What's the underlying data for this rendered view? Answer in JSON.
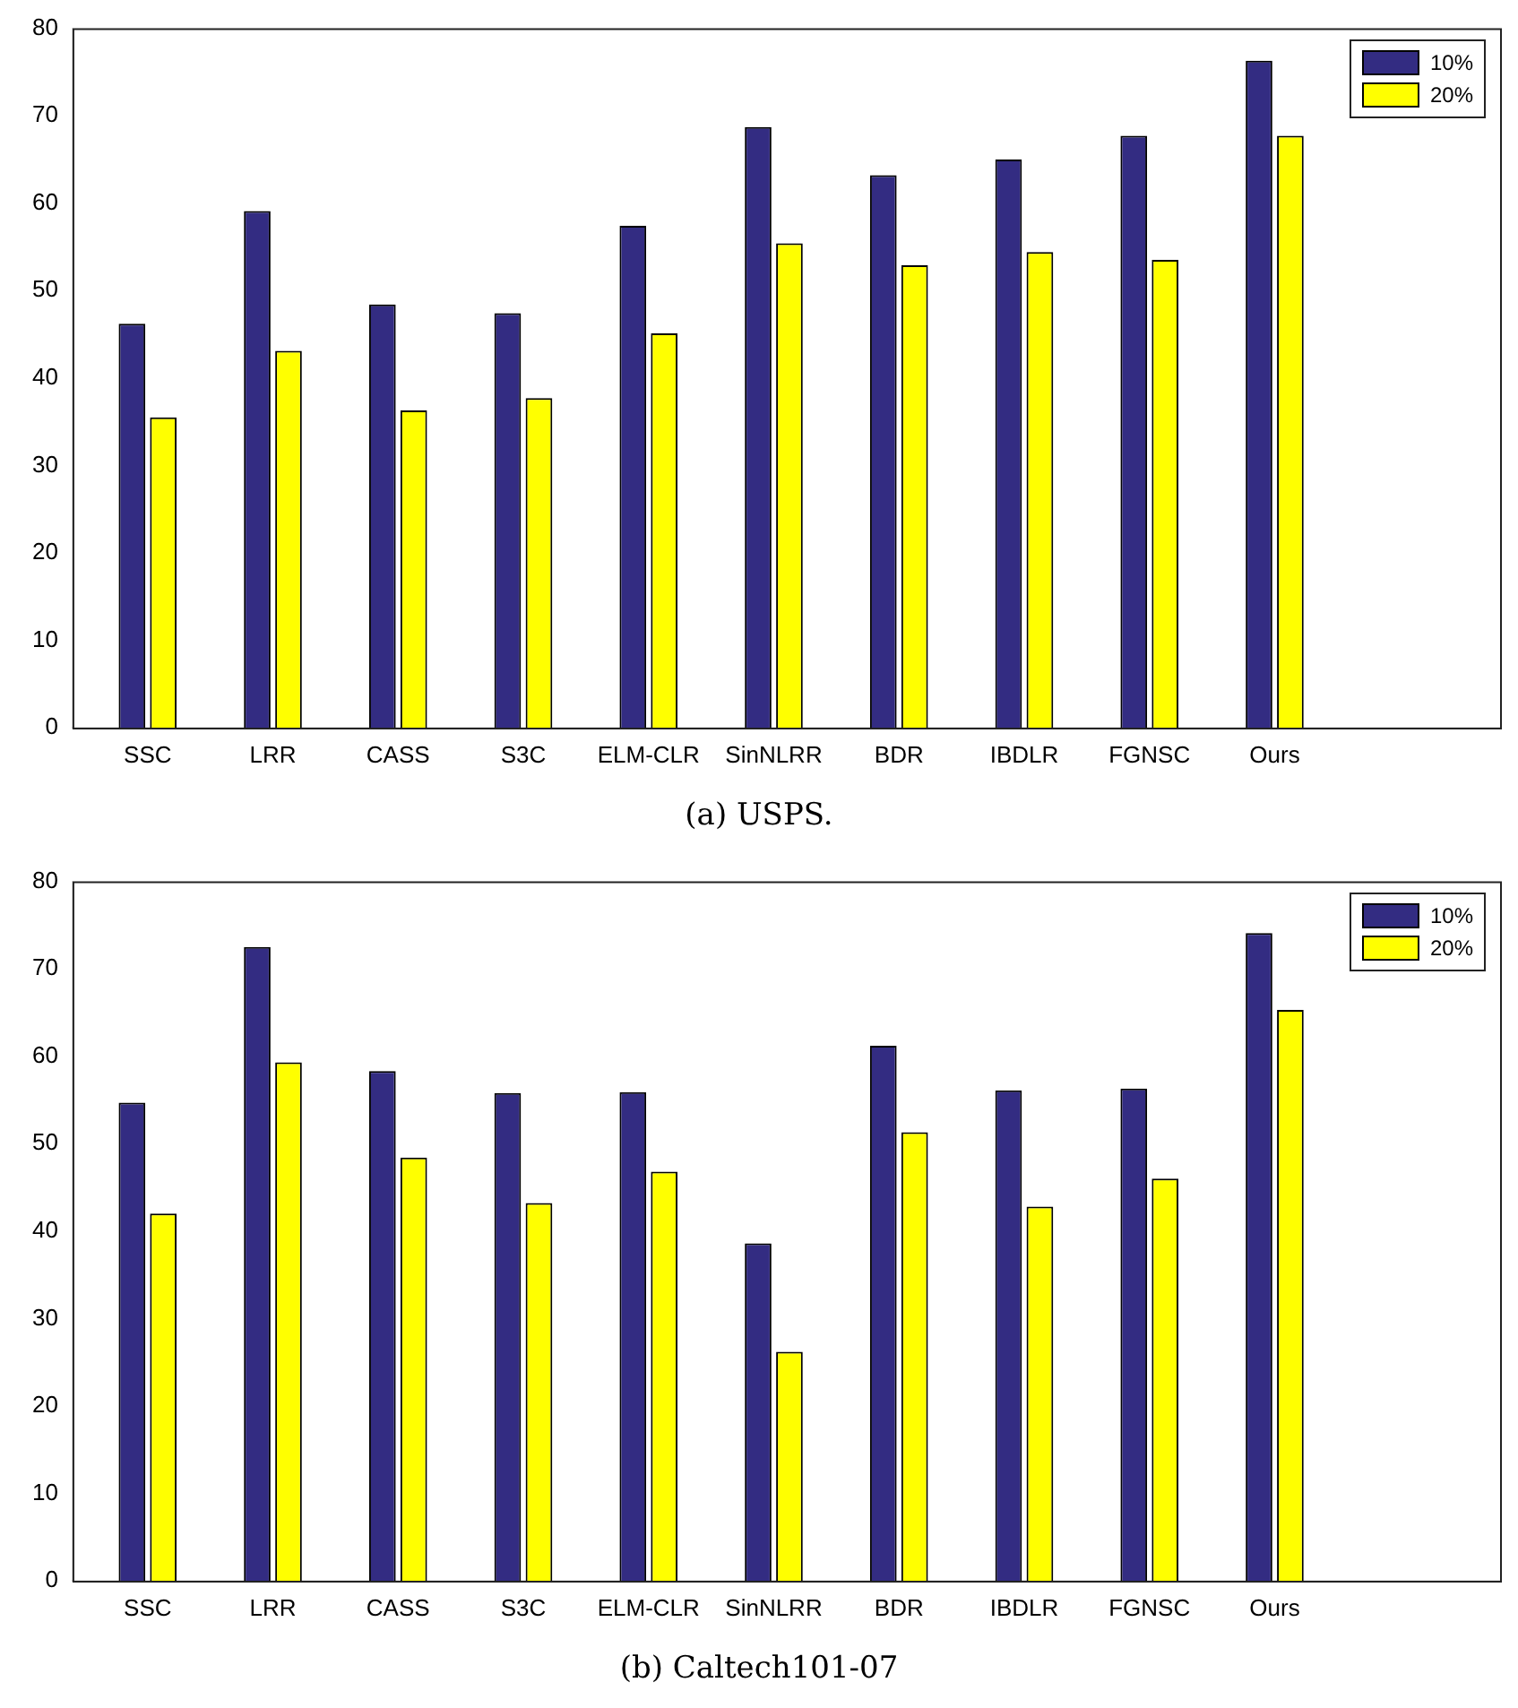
{
  "chart_data": [
    {
      "type": "bar",
      "title": "(a) USPS.",
      "categories": [
        "SSC",
        "LRR",
        "CASS",
        "S3C",
        "ELM-CLR",
        "SinNLRR",
        "BDR",
        "IBDLR",
        "FGNSC",
        "Ours"
      ],
      "series": [
        {
          "name": "10%",
          "color": "#332c82",
          "values": [
            46.2,
            59.1,
            48.4,
            47.4,
            57.4,
            68.7,
            63.2,
            65.0,
            67.7,
            76.3
          ]
        },
        {
          "name": "20%",
          "color": "#ffff00",
          "values": [
            35.5,
            43.1,
            36.3,
            37.7,
            45.1,
            55.4,
            52.9,
            54.4,
            53.5,
            67.7
          ]
        }
      ],
      "ylim": [
        0,
        80
      ],
      "yticks": [
        0,
        10,
        20,
        30,
        40,
        50,
        60,
        70,
        80
      ],
      "grid": false,
      "legend": "top right"
    },
    {
      "type": "bar",
      "title": "(b) Caltech101-07",
      "categories": [
        "SSC",
        "LRR",
        "CASS",
        "S3C",
        "ELM-CLR",
        "SinNLRR",
        "BDR",
        "IBDLR",
        "FGNSC",
        "Ours"
      ],
      "series": [
        {
          "name": "10%",
          "color": "#332c82",
          "values": [
            54.7,
            72.5,
            58.3,
            55.8,
            55.9,
            38.6,
            61.2,
            56.1,
            56.3,
            74.1
          ]
        },
        {
          "name": "20%",
          "color": "#ffff00",
          "values": [
            42.0,
            59.3,
            48.4,
            43.2,
            46.8,
            26.2,
            51.3,
            42.8,
            46.0,
            65.3
          ]
        }
      ],
      "ylim": [
        0,
        80
      ],
      "yticks": [
        0,
        10,
        20,
        30,
        40,
        50,
        60,
        70,
        80
      ],
      "grid": false,
      "legend": "top right"
    }
  ]
}
